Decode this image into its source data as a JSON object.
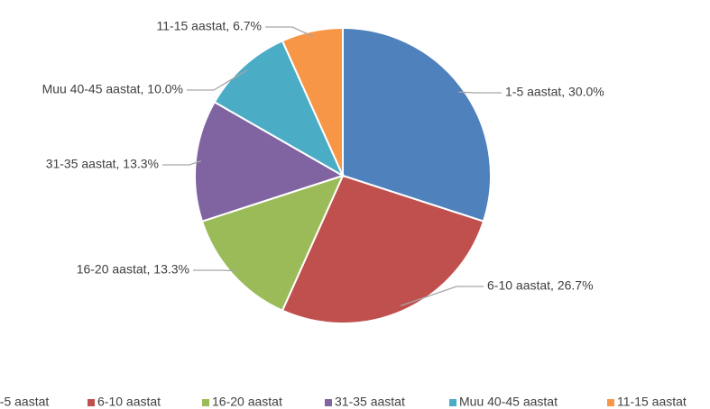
{
  "chart_data": {
    "type": "pie",
    "categories": [
      "1-5 aastat",
      "6-10 aastat",
      "16-20 aastat",
      "31-35 aastat",
      "Muu 40-45 aastat",
      "11-15 aastat"
    ],
    "values": [
      30.0,
      26.7,
      13.3,
      13.3,
      10.0,
      6.7
    ],
    "value_labels": [
      "1-5 aastat, 30.0%",
      "6-10 aastat, 26.7%",
      "16-20 aastat, 13.3%",
      "31-35 aastat, 13.3%",
      "Muu 40-45 aastat, 10.0%",
      "11-15 aastat, 6.7%"
    ],
    "colors": [
      "#4f81bd",
      "#c0504d",
      "#9bbb59",
      "#8064a2",
      "#4bacc6",
      "#f79646"
    ],
    "legend": "bottom"
  }
}
